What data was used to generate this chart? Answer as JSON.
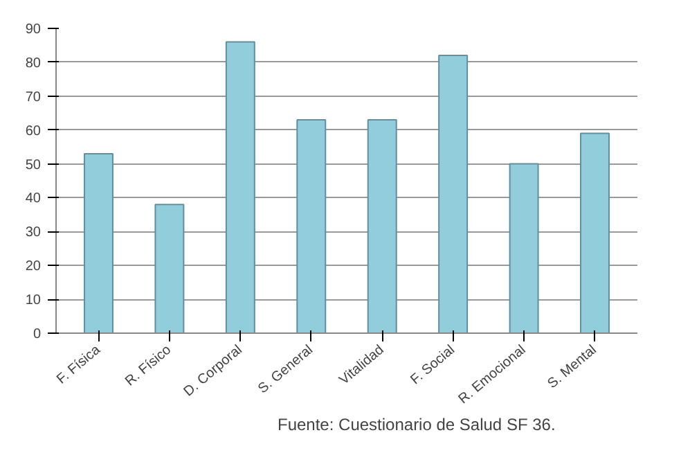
{
  "chart_data": {
    "type": "bar",
    "categories": [
      "F. Física",
      "R. Físico",
      "D. Corporal",
      "S. General",
      "Vitalidad",
      "F. Social",
      "R. Emocional",
      "S. Mental"
    ],
    "values": [
      53,
      38,
      86,
      63,
      63,
      82,
      50,
      59
    ],
    "color": "#92cddc",
    "ylim": [
      0,
      90
    ],
    "yticks": [
      0,
      10,
      20,
      30,
      40,
      50,
      60,
      70,
      80,
      90
    ],
    "grid": "y",
    "annotations": [
      "Fuente: Cuestionario de Salud SF 36."
    ]
  }
}
